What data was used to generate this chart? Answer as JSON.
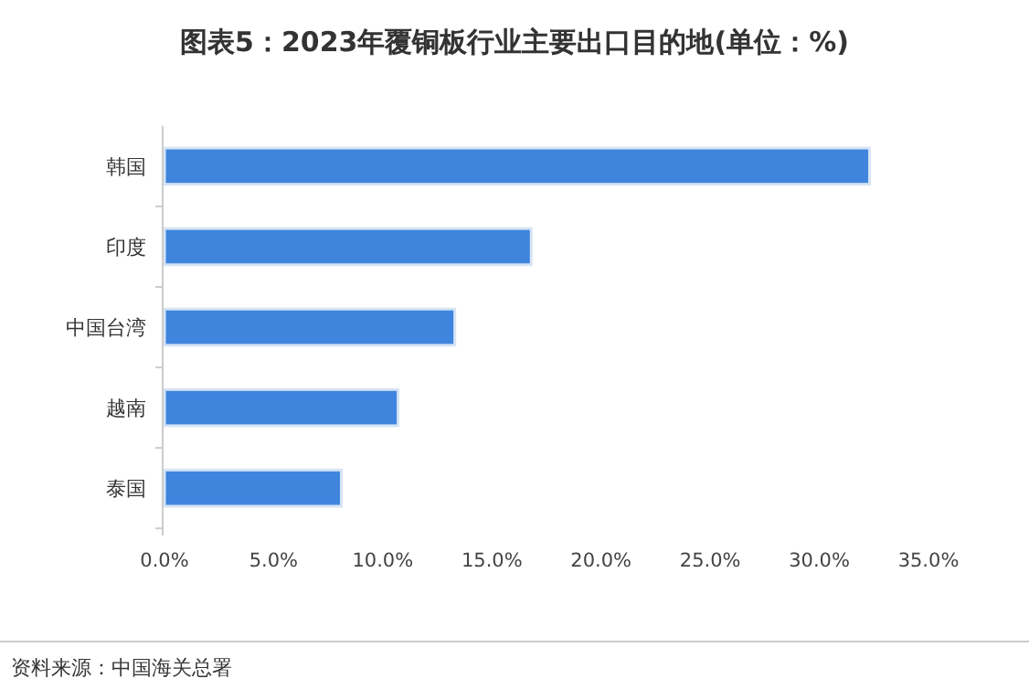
{
  "chart_data": {
    "type": "bar",
    "orientation": "horizontal",
    "title": "图表5：2023年覆铜板行业主要出口目的地(单位：%)",
    "categories": [
      "韩国",
      "印度",
      "中国台湾",
      "越南",
      "泰国"
    ],
    "values": [
      32.3,
      16.8,
      13.3,
      10.7,
      8.1
    ],
    "color": "#3f85de",
    "xlim": [
      0,
      35
    ],
    "xticks": [
      {
        "value": 0,
        "label": "0.0%"
      },
      {
        "value": 5,
        "label": "5.0%"
      },
      {
        "value": 10,
        "label": "10.0%"
      },
      {
        "value": 15,
        "label": "15.0%"
      },
      {
        "value": 20,
        "label": "20.0%"
      },
      {
        "value": 25,
        "label": "25.0%"
      },
      {
        "value": 30,
        "label": "30.0%"
      },
      {
        "value": 35,
        "label": "35.0%"
      }
    ],
    "grid": false,
    "annotations": [
      "资料来源：中国海关总署"
    ]
  }
}
